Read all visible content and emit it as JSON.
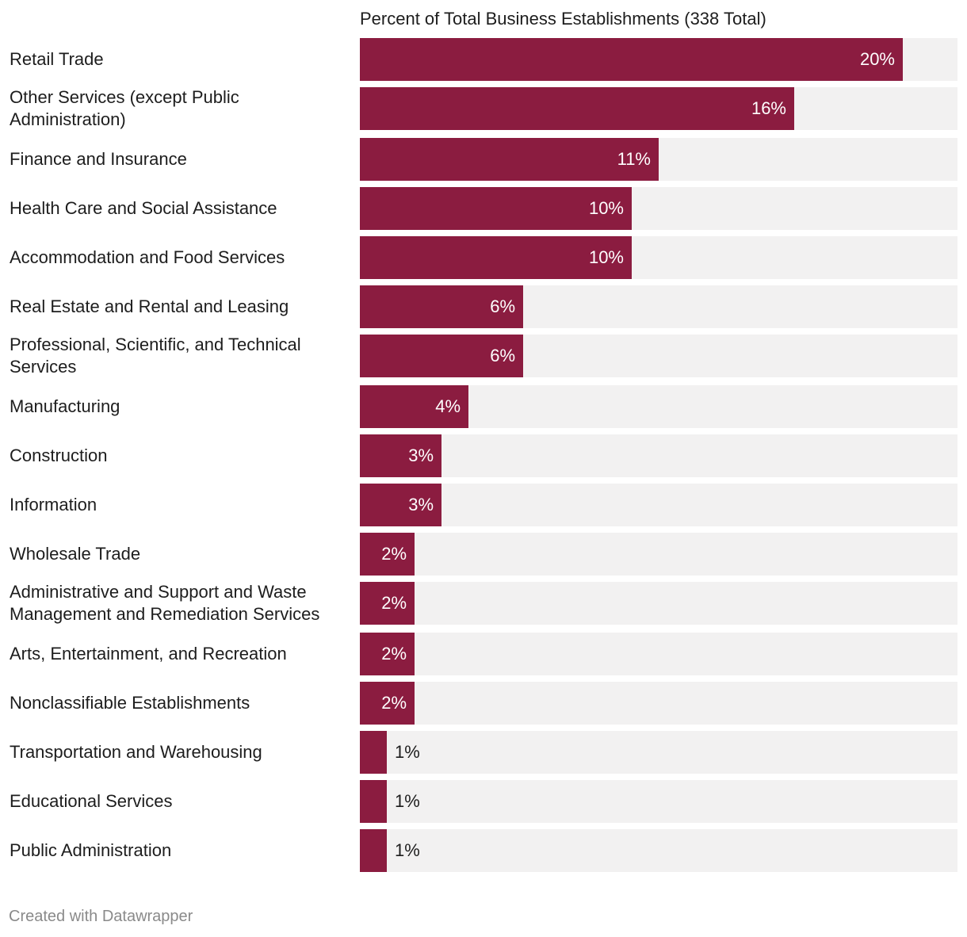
{
  "chart_data": {
    "type": "bar",
    "orientation": "horizontal",
    "column_header": "Percent of Total Business Establishments (338 Total)",
    "categories": [
      "Retail Trade",
      "Other Services (except Public Administration)",
      "Finance and Insurance",
      "Health Care and Social Assistance",
      "Accommodation and Food Services",
      "Real Estate and Rental and Leasing",
      "Professional, Scientific, and Technical Services",
      "Manufacturing",
      "Construction",
      "Information",
      "Wholesale Trade",
      "Administrative and Support and Waste Management and Remediation Services",
      "Arts, Entertainment, and Recreation",
      "Nonclassifiable Establishments",
      "Transportation and Warehousing",
      "Educational Services",
      "Public Administration"
    ],
    "values": [
      20,
      16,
      11,
      10,
      10,
      6,
      6,
      4,
      3,
      3,
      2,
      2,
      2,
      2,
      1,
      1,
      1
    ],
    "value_labels": [
      "20%",
      "16%",
      "11%",
      "10%",
      "10%",
      "6%",
      "6%",
      "4%",
      "3%",
      "3%",
      "2%",
      "2%",
      "2%",
      "2%",
      "1%",
      "1%",
      "1%"
    ],
    "xlim": [
      0,
      22
    ],
    "bar_color": "#8b1c40",
    "track_color": "#f2f1f1"
  },
  "footer": {
    "credit": "Created with Datawrapper"
  }
}
